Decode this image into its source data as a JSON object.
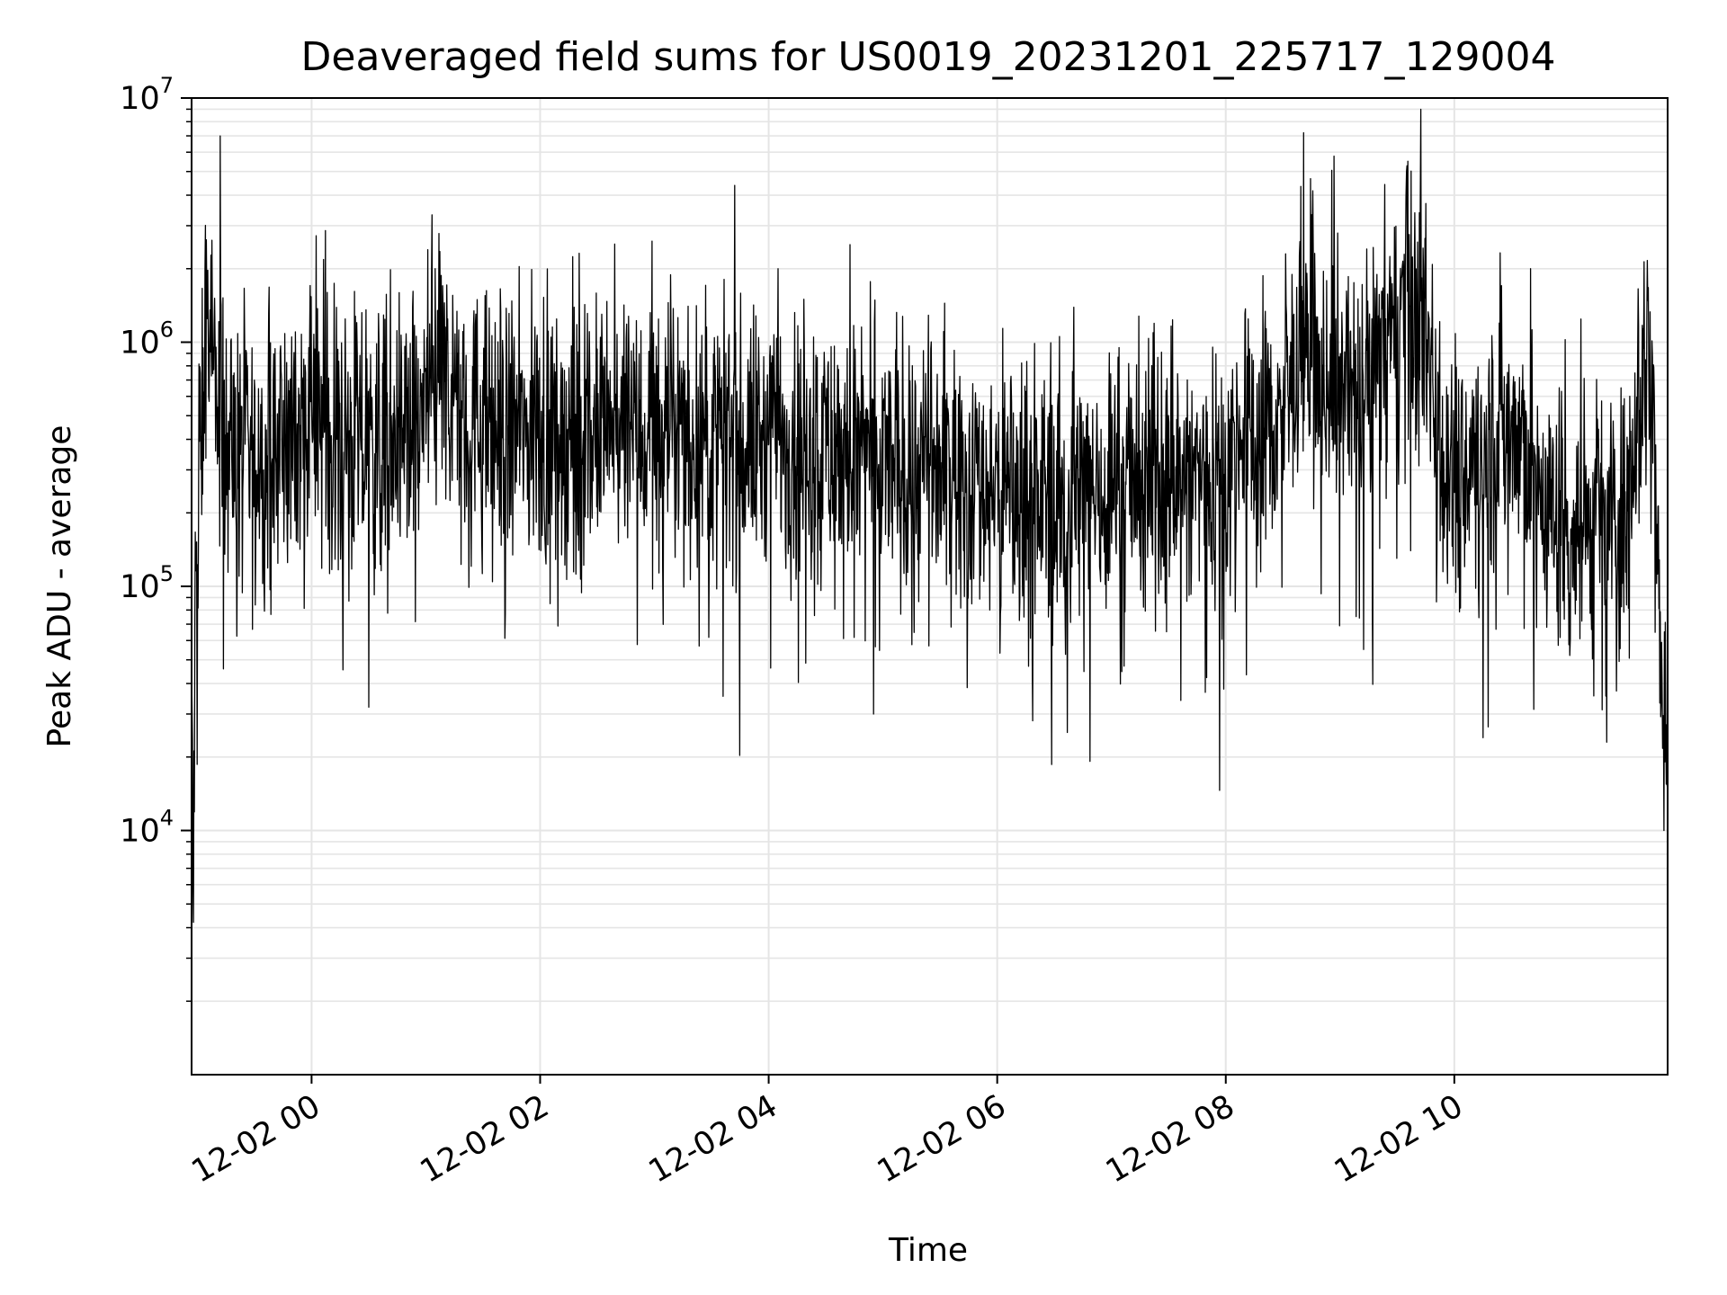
{
  "chart_data": {
    "type": "line",
    "title": "Deaveraged field sums for US0019_20231201_225717_129004",
    "xlabel": "Time",
    "ylabel": "Peak ADU - average",
    "y_scale": "log",
    "ylim": [
      1000,
      10000000
    ],
    "xlim": [
      "2023-12-01 22:57",
      "2023-12-02 11:52"
    ],
    "x_ticks": [
      "12-02 00",
      "12-02 02",
      "12-02 04",
      "12-02 06",
      "12-02 08",
      "12-02 10"
    ],
    "x_tick_times": [
      "2023-12-02 00:00",
      "2023-12-02 02:00",
      "2023-12-02 04:00",
      "2023-12-02 06:00",
      "2023-12-02 08:00",
      "2023-12-02 10:00"
    ],
    "y_ticks": [
      {
        "base": "10",
        "exp": "4",
        "value": 10000
      },
      {
        "base": "10",
        "exp": "5",
        "value": 100000
      },
      {
        "base": "10",
        "exp": "6",
        "value": 1000000
      },
      {
        "base": "10",
        "exp": "7",
        "value": 10000000
      }
    ],
    "grid": true,
    "line_color": "#000000",
    "grid_color": "#e5e5e5",
    "series": [
      {
        "x": [
          "2023-12-01 22:57",
          "2023-12-01 22:58",
          "2023-12-01 22:59",
          "2023-12-01 23:00",
          "2023-12-01 23:02",
          "2023-12-01 23:05",
          "2023-12-01 23:08",
          "2023-12-01 23:10",
          "2023-12-01 23:13",
          "2023-12-01 23:16",
          "2023-12-01 23:19",
          "2023-12-01 23:22",
          "2023-12-01 23:25",
          "2023-12-01 23:30",
          "2023-12-01 23:35",
          "2023-12-01 23:40",
          "2023-12-01 23:50",
          "2023-12-02 00:00",
          "2023-12-02 00:10",
          "2023-12-02 00:20",
          "2023-12-02 00:35",
          "2023-12-02 00:45",
          "2023-12-02 00:55",
          "2023-12-02 01:05",
          "2023-12-02 01:10",
          "2023-12-02 01:20",
          "2023-12-02 01:40",
          "2023-12-02 02:00",
          "2023-12-02 02:20",
          "2023-12-02 02:40",
          "2023-12-02 03:00",
          "2023-12-02 03:15",
          "2023-12-02 03:30",
          "2023-12-02 03:45",
          "2023-12-02 04:00",
          "2023-12-02 04:05",
          "2023-12-02 04:20",
          "2023-12-02 04:40",
          "2023-12-02 04:50",
          "2023-12-02 05:00",
          "2023-12-02 05:20",
          "2023-12-02 05:40",
          "2023-12-02 06:00",
          "2023-12-02 06:20",
          "2023-12-02 06:40",
          "2023-12-02 07:00",
          "2023-12-02 07:20",
          "2023-12-02 07:40",
          "2023-12-02 07:55",
          "2023-12-02 08:10",
          "2023-12-02 08:25",
          "2023-12-02 08:40",
          "2023-12-02 08:55",
          "2023-12-02 09:10",
          "2023-12-02 09:20",
          "2023-12-02 09:30",
          "2023-12-02 09:35",
          "2023-12-02 09:45",
          "2023-12-02 09:50",
          "2023-12-02 09:55",
          "2023-12-02 10:05",
          "2023-12-02 10:15",
          "2023-12-02 10:30",
          "2023-12-02 10:40",
          "2023-12-02 10:50",
          "2023-12-02 11:00",
          "2023-12-02 11:10",
          "2023-12-02 11:20",
          "2023-12-02 11:25",
          "2023-12-02 11:30",
          "2023-12-02 11:35",
          "2023-12-02 11:40",
          "2023-12-02 11:42",
          "2023-12-02 11:45",
          "2023-12-02 11:47",
          "2023-12-02 11:49",
          "2023-12-02 11:52"
        ],
        "y": [
          40000,
          5000,
          90000,
          120000,
          450000,
          1200000,
          700000,
          600000,
          500000,
          420000,
          350000,
          320000,
          330000,
          300000,
          330000,
          350000,
          420000,
          480000,
          450000,
          380000,
          360000,
          400000,
          450000,
          700000,
          650000,
          500000,
          420000,
          430000,
          420000,
          400000,
          430000,
          400000,
          390000,
          380000,
          400000,
          420000,
          380000,
          350000,
          330000,
          320000,
          300000,
          290000,
          250000,
          240000,
          230000,
          260000,
          270000,
          280000,
          300000,
          380000,
          450000,
          800000,
          700000,
          600000,
          800000,
          1200000,
          1500000,
          1000000,
          700000,
          350000,
          280000,
          400000,
          450000,
          300000,
          200000,
          170000,
          160000,
          170000,
          200000,
          180000,
          550000,
          700000,
          750000,
          600000,
          150000,
          30000,
          25000
        ]
      }
    ],
    "envelope_spikes": [
      {
        "x": "2023-12-01 23:12",
        "y": 7000000
      },
      {
        "x": "2023-12-02 01:05",
        "y": 2000000
      },
      {
        "x": "2023-12-02 04:05",
        "y": 2000000
      },
      {
        "x": "2023-12-02 09:35",
        "y": 5000000
      },
      {
        "x": "2023-12-02 10:40",
        "y": 2000000
      },
      {
        "x": "2023-12-02 00:30",
        "y": 32000
      },
      {
        "x": "2023-12-02 04:55",
        "y": 30000
      },
      {
        "x": "2023-12-02 10:15",
        "y": 24000
      },
      {
        "x": "2023-12-02 11:20",
        "y": 23000
      },
      {
        "x": "2023-12-02 11:50",
        "y": 10000
      }
    ]
  }
}
